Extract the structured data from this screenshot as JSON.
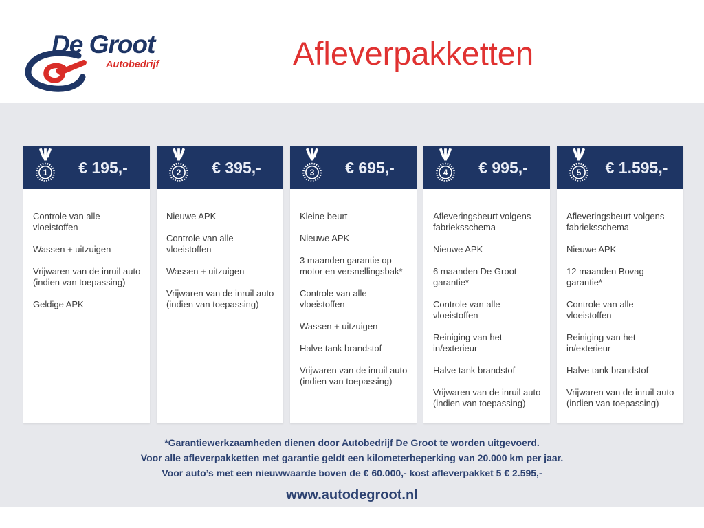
{
  "logo": {
    "name": "De Groot",
    "subtitle": "Autobedrijf"
  },
  "title": "Afleverpakketten",
  "packages": [
    {
      "number": "1",
      "price": "€ 195,-",
      "items": [
        "Controle van alle vloeistoffen",
        "Wassen + uitzuigen",
        "Vrijwaren van de inruil auto (indien van toepassing)",
        "Geldige APK"
      ]
    },
    {
      "number": "2",
      "price": "€ 395,-",
      "items": [
        "Nieuwe APK",
        "Controle van alle vloeistoffen",
        "Wassen + uitzuigen",
        "Vrijwaren van de inruil auto (indien van toepassing)"
      ]
    },
    {
      "number": "3",
      "price": "€ 695,-",
      "items": [
        "Kleine beurt",
        "Nieuwe APK",
        "3 maanden garantie op motor en versnellingsbak*",
        "Controle van alle vloeistoffen",
        "Wassen + uitzuigen",
        "Halve tank brandstof",
        "Vrijwaren van de inruil auto (indien van toepassing)"
      ]
    },
    {
      "number": "4",
      "price": "€ 995,-",
      "items": [
        "Afleveringsbeurt volgens fabrieksschema",
        "Nieuwe APK",
        "6 maanden De Groot garantie*",
        "Controle van alle vloeistoffen",
        "Reiniging van het in/exterieur",
        "Halve tank brandstof",
        "Vrijwaren van de inruil auto (indien van toepassing)"
      ]
    },
    {
      "number": "5",
      "price": "€ 1.595,-",
      "items": [
        "Afleveringsbeurt volgens fabrieksschema",
        "Nieuwe APK",
        "12 maanden Bovag garantie*",
        "Controle van alle vloeistoffen",
        "Reiniging van het in/exterieur",
        "Halve tank brandstof",
        "Vrijwaren van de inruil auto (indien van toepassing)"
      ]
    }
  ],
  "footnotes": [
    "*Garantiewerkzaamheden dienen door Autobedrijf De Groot te worden uitgevoerd.",
    "Voor alle afleverpakketten met garantie geldt een kilometerbeperking van 20.000 km per jaar.",
    "Voor auto’s met een nieuwwaarde boven de € 60.000,- kost afleverpakket 5 € 2.595,-"
  ],
  "website": "www.autodegroot.nl",
  "colors": {
    "navy": "#1e3564",
    "logo_navy": "#1e3565",
    "logo_red": "#d92d28",
    "title_red": "#e03231",
    "background_gray": "#e7e8ec",
    "body_text": "#3d3d3d",
    "footer_navy": "#2d4271",
    "price_text": "#e9edf6"
  }
}
